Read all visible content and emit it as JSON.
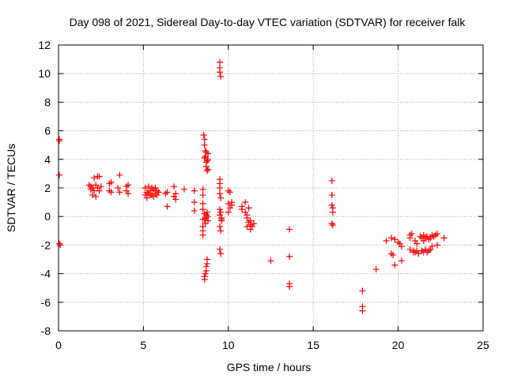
{
  "chart_data": {
    "type": "scatter",
    "title": "Day 098 of 2021, Sidereal Day-to-day VTEC variation (SDTVAR) for receiver falk",
    "xlabel": "GPS time / hours",
    "ylabel": "SDTVAR / TECUs",
    "xlim": [
      0,
      25
    ],
    "ylim": [
      -8,
      12
    ],
    "xticks": [
      0,
      5,
      10,
      15,
      20,
      25
    ],
    "yticks": [
      -8,
      -6,
      -4,
      -2,
      0,
      2,
      4,
      6,
      8,
      10,
      12
    ],
    "grid": true,
    "marker": "plus",
    "color": "#ff0000",
    "series": [
      {
        "name": "SDTVAR",
        "points": [
          [
            0.05,
            5.4
          ],
          [
            0.05,
            5.3
          ],
          [
            0.05,
            2.9
          ],
          [
            0.05,
            -1.9
          ],
          [
            0.1,
            -2.0
          ],
          [
            1.8,
            2.2
          ],
          [
            1.9,
            2.1
          ],
          [
            1.9,
            1.9
          ],
          [
            2.0,
            2.0
          ],
          [
            2.0,
            1.5
          ],
          [
            2.1,
            1.8
          ],
          [
            2.1,
            2.7
          ],
          [
            2.2,
            1.4
          ],
          [
            2.2,
            2.2
          ],
          [
            2.3,
            2.0
          ],
          [
            2.3,
            2.8
          ],
          [
            2.4,
            1.8
          ],
          [
            2.4,
            2.8
          ],
          [
            2.5,
            2.1
          ],
          [
            3.0,
            2.3
          ],
          [
            3.1,
            2.4
          ],
          [
            3.0,
            1.8
          ],
          [
            3.1,
            1.7
          ],
          [
            3.5,
            2.0
          ],
          [
            3.6,
            2.9
          ],
          [
            3.6,
            1.7
          ],
          [
            4.0,
            2.1
          ],
          [
            4.0,
            1.8
          ],
          [
            4.1,
            1.6
          ],
          [
            4.1,
            2.2
          ],
          [
            5.1,
            1.5
          ],
          [
            5.1,
            2.0
          ],
          [
            5.2,
            1.7
          ],
          [
            5.2,
            1.3
          ],
          [
            5.3,
            2.1
          ],
          [
            5.3,
            1.6
          ],
          [
            5.4,
            1.5
          ],
          [
            5.4,
            1.8
          ],
          [
            5.5,
            1.5
          ],
          [
            5.5,
            2.0
          ],
          [
            5.6,
            1.9
          ],
          [
            5.6,
            1.4
          ],
          [
            5.7,
            1.6
          ],
          [
            5.7,
            2.0
          ],
          [
            5.8,
            1.8
          ],
          [
            5.8,
            1.5
          ],
          [
            5.9,
            1.7
          ],
          [
            6.3,
            1.6
          ],
          [
            6.4,
            1.7
          ],
          [
            6.4,
            0.7
          ],
          [
            6.8,
            1.4
          ],
          [
            6.8,
            2.1
          ],
          [
            6.9,
            1.6
          ],
          [
            6.9,
            1.2
          ],
          [
            7.4,
            1.9
          ],
          [
            8.0,
            1.8
          ],
          [
            8.0,
            1.0
          ],
          [
            8.0,
            0.4
          ],
          [
            8.5,
            1.9
          ],
          [
            8.5,
            1.5
          ],
          [
            8.5,
            0.9
          ],
          [
            8.5,
            0.5
          ],
          [
            8.5,
            -0.2
          ],
          [
            8.5,
            -0.7
          ],
          [
            8.5,
            -1.0
          ],
          [
            8.5,
            -1.3
          ],
          [
            8.55,
            5.7
          ],
          [
            8.6,
            5.4
          ],
          [
            8.6,
            5.0
          ],
          [
            8.65,
            4.6
          ],
          [
            8.65,
            4.2
          ],
          [
            8.7,
            3.8
          ],
          [
            8.7,
            3.5
          ],
          [
            8.75,
            3.2
          ],
          [
            8.8,
            4.4
          ],
          [
            8.8,
            4.0
          ],
          [
            8.6,
            4.1
          ],
          [
            8.7,
            4.5
          ],
          [
            8.75,
            3.9
          ],
          [
            8.8,
            3.3
          ],
          [
            8.6,
            0.2
          ],
          [
            8.6,
            -0.2
          ],
          [
            8.65,
            -0.5
          ],
          [
            8.7,
            -0.1
          ],
          [
            8.7,
            0.1
          ],
          [
            8.75,
            0.3
          ],
          [
            8.8,
            0.0
          ],
          [
            8.8,
            -0.3
          ],
          [
            8.6,
            -4.4
          ],
          [
            8.6,
            -4.2
          ],
          [
            8.65,
            -4.0
          ],
          [
            8.7,
            -3.8
          ],
          [
            8.7,
            -3.5
          ],
          [
            8.75,
            -3.3
          ],
          [
            8.75,
            -3.0
          ],
          [
            9.5,
            10.8
          ],
          [
            9.5,
            10.4
          ],
          [
            9.5,
            10.1
          ],
          [
            9.55,
            9.8
          ],
          [
            9.5,
            2.6
          ],
          [
            9.5,
            2.3
          ],
          [
            9.5,
            2.0
          ],
          [
            9.5,
            1.6
          ],
          [
            9.55,
            1.3
          ],
          [
            9.5,
            0.5
          ],
          [
            9.55,
            0.3
          ],
          [
            9.5,
            0.1
          ],
          [
            9.6,
            -0.1
          ],
          [
            9.6,
            -0.3
          ],
          [
            9.5,
            -0.7
          ],
          [
            9.55,
            -1.0
          ],
          [
            9.6,
            -0.2
          ],
          [
            9.5,
            -2.3
          ],
          [
            9.55,
            -2.6
          ],
          [
            10.0,
            1.8
          ],
          [
            10.1,
            1.7
          ],
          [
            10.0,
            0.9
          ],
          [
            10.1,
            0.6
          ],
          [
            10.2,
            0.8
          ],
          [
            10.2,
            1.0
          ],
          [
            10.0,
            0.3
          ],
          [
            10.8,
            0.7
          ],
          [
            10.8,
            0.5
          ],
          [
            11.0,
            1.0
          ],
          [
            11.0,
            0.3
          ],
          [
            11.1,
            0.1
          ],
          [
            11.1,
            -0.1
          ],
          [
            11.2,
            -0.4
          ],
          [
            11.2,
            0.6
          ],
          [
            11.3,
            -0.3
          ],
          [
            11.3,
            -0.6
          ],
          [
            11.4,
            -0.7
          ],
          [
            11.1,
            -0.7
          ],
          [
            11.5,
            -0.5
          ],
          [
            11.3,
            -0.9
          ],
          [
            12.5,
            -3.1
          ],
          [
            13.6,
            -0.9
          ],
          [
            13.6,
            -2.8
          ],
          [
            13.6,
            -4.7
          ],
          [
            13.6,
            -4.9
          ],
          [
            16.1,
            2.5
          ],
          [
            16.1,
            1.5
          ],
          [
            16.1,
            0.8
          ],
          [
            16.15,
            0.6
          ],
          [
            16.15,
            0.3
          ],
          [
            16.1,
            -0.5
          ],
          [
            16.15,
            -0.6
          ],
          [
            17.9,
            -5.2
          ],
          [
            17.9,
            -6.3
          ],
          [
            17.9,
            -6.6
          ],
          [
            18.7,
            -3.7
          ],
          [
            19.3,
            -1.7
          ],
          [
            19.6,
            -1.5
          ],
          [
            19.6,
            -2.6
          ],
          [
            19.7,
            -2.7
          ],
          [
            19.8,
            -1.6
          ],
          [
            19.8,
            -3.4
          ],
          [
            20.0,
            -1.8
          ],
          [
            20.1,
            -1.9
          ],
          [
            20.2,
            -2.1
          ],
          [
            20.2,
            -3.1
          ],
          [
            20.7,
            -1.3
          ],
          [
            20.7,
            -1.5
          ],
          [
            20.7,
            -2.3
          ],
          [
            20.8,
            -1.2
          ],
          [
            20.9,
            -2.5
          ],
          [
            20.9,
            -2.4
          ],
          [
            21.0,
            -1.7
          ],
          [
            21.0,
            -2.5
          ],
          [
            21.1,
            -1.9
          ],
          [
            21.1,
            -2.4
          ],
          [
            21.2,
            -2.6
          ],
          [
            21.3,
            -1.4
          ],
          [
            21.4,
            -1.5
          ],
          [
            21.4,
            -2.4
          ],
          [
            21.5,
            -1.3
          ],
          [
            21.5,
            -1.7
          ],
          [
            21.5,
            -2.5
          ],
          [
            21.6,
            -1.5
          ],
          [
            21.6,
            -2.3
          ],
          [
            21.7,
            -1.4
          ],
          [
            21.7,
            -2.5
          ],
          [
            21.8,
            -1.6
          ],
          [
            21.8,
            -2.4
          ],
          [
            21.9,
            -1.5
          ],
          [
            21.9,
            -2.3
          ],
          [
            22.0,
            -1.3
          ],
          [
            22.0,
            -2.1
          ],
          [
            22.1,
            -1.4
          ],
          [
            22.2,
            -1.3
          ],
          [
            22.3,
            -1.2
          ],
          [
            22.3,
            -2.0
          ],
          [
            22.7,
            -1.5
          ]
        ]
      }
    ]
  }
}
